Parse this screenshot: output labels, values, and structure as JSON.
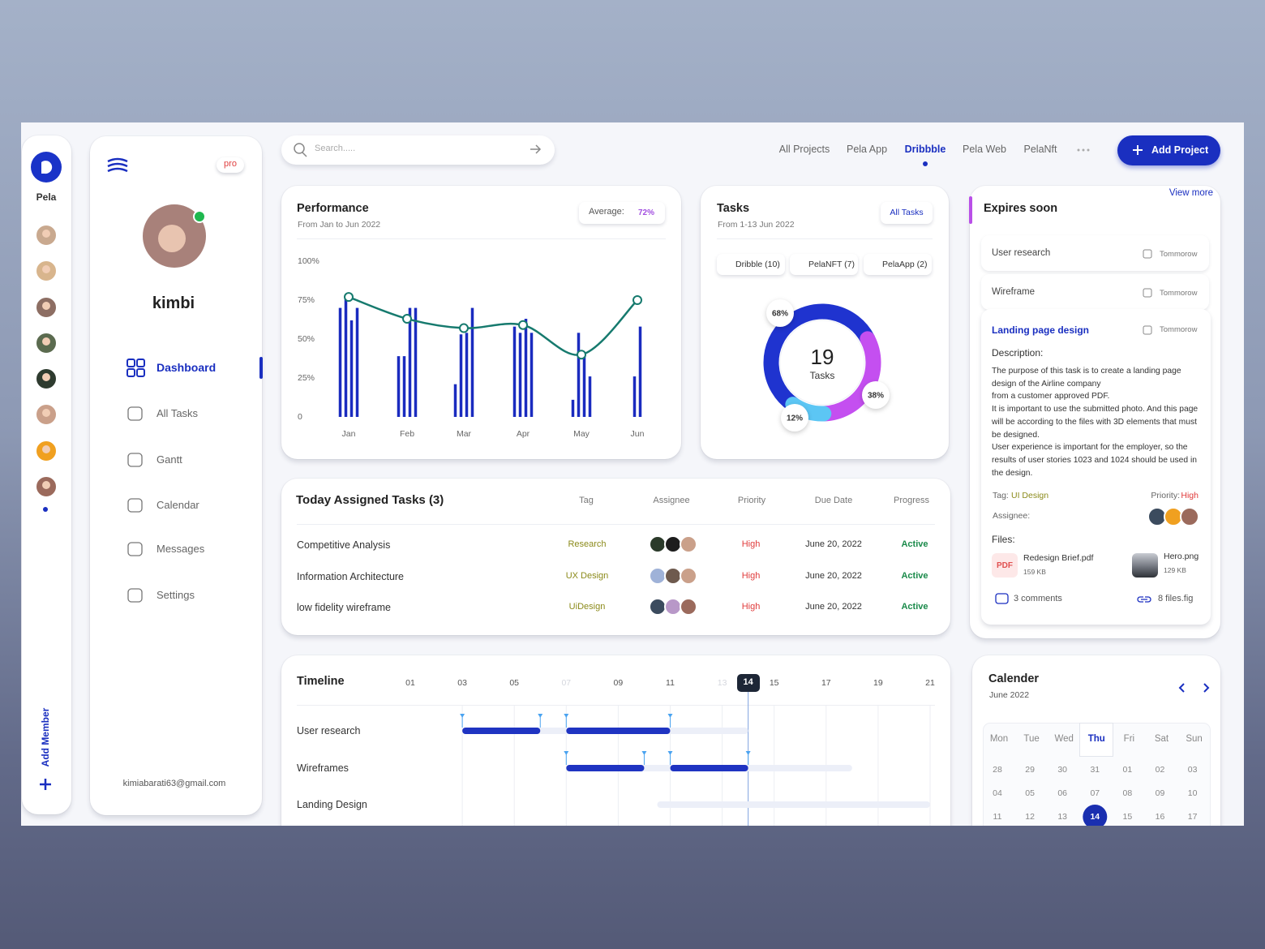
{
  "sidebar": {
    "brand": "Pela",
    "add_member": "Add Member"
  },
  "profile": {
    "badge": "pro",
    "name": "kimbi",
    "email": "kimiabarati63@gmail.com"
  },
  "nav": [
    "Dashboard",
    "All Tasks",
    "Gantt",
    "Calendar",
    "Messages",
    "Settings"
  ],
  "search": {
    "placeholder": "Search....."
  },
  "tabs": [
    "All Projects",
    "Pela App",
    "Dribbble",
    "Pela Web",
    "PelaNft"
  ],
  "add_project": "Add Project",
  "performance": {
    "title": "Performance",
    "subtitle": "From Jan to Jun 2022",
    "average_label": "Average:",
    "average": "72%",
    "months": [
      "Jan",
      "Feb",
      "Mar",
      "Apr",
      "May",
      "Jun"
    ],
    "ylim": [
      0,
      100
    ],
    "yticks": [
      {
        "value": 100,
        "label": "100%"
      },
      {
        "value": 75,
        "label": "75%"
      },
      {
        "value": 50,
        "label": "50%"
      },
      {
        "value": 25,
        "label": "25%"
      },
      0
    ],
    "bars": [
      [
        70,
        77,
        62,
        70
      ],
      [
        39,
        39,
        70,
        70
      ],
      [
        21,
        53,
        54,
        70
      ],
      [
        58,
        54,
        63,
        54
      ],
      [
        11,
        54,
        41,
        26
      ],
      [
        26,
        58
      ]
    ],
    "bar_color": "#1a2bbf",
    "line": [
      77,
      63,
      57,
      59,
      40,
      75
    ],
    "line_color": "#167a6e"
  },
  "tasks": {
    "title": "Tasks",
    "subtitle": "From 1-13 Jun 2022",
    "button": "All Tasks",
    "total": 19,
    "total_label": "Tasks",
    "segments": [
      {
        "name": "Dribble (10)",
        "color": "#1f33cf",
        "value": 68,
        "value_label": "68%"
      },
      {
        "name": "PelaNFT (7)",
        "color": "#5cc6f4",
        "value": 12,
        "value_label": "12%"
      },
      {
        "name": "PelaApp (2)",
        "color": "#c44ff0",
        "value": 38,
        "value_label": "38%"
      }
    ]
  },
  "assigned": {
    "title": "Today Assigned Tasks (3)",
    "columns": [
      "Tag",
      "Assignee",
      "Priority",
      "Due Date",
      "Progress"
    ],
    "rows": [
      [
        "Competitive Analysis",
        "Research",
        "High",
        "June 20, 2022",
        "Active"
      ],
      [
        "Information Architecture",
        "UX Design",
        "High",
        "June 20, 2022",
        "Active"
      ],
      [
        "low fidelity wireframe",
        "UiDesign",
        "High",
        "June 20, 2022",
        "Active"
      ]
    ]
  },
  "expires": {
    "title": "Expires soon",
    "view_more": "View more",
    "items": [
      {
        "name": "User research",
        "due": "Tommorow"
      },
      {
        "name": "Wireframe",
        "due": "Tommorow"
      }
    ],
    "detail": {
      "title": "Landing page  design",
      "due": "Tommorow",
      "description_label": "Description:",
      "description": [
        "The purpose of this task is to create a landing page design of the Airline company",
        "from a customer approved PDF.",
        "It is important to use the submitted photo. And this page will be according to the files with 3D elements that must be designed.",
        "User experience is important for the employer, so the results of user stories 1023 and 1024 should be used in the design."
      ],
      "tag_label": "Tag:",
      "tag": "UI Design",
      "priority_label": "Priority:",
      "priority": "High",
      "assignee_label": "Assignee:",
      "files_label": "Files:",
      "files": [
        {
          "icon": "PDF",
          "name": "Redesign Brief.pdf",
          "size": "159 KB"
        },
        {
          "name": "Hero.png",
          "size": "129 KB"
        }
      ],
      "comments": "3 comments",
      "figma": "8 files.fig"
    }
  },
  "timeline": {
    "title": "Timeline",
    "ticks": [
      {
        "value": 1,
        "label": "01"
      },
      {
        "value": 3,
        "label": "03"
      },
      {
        "value": 5,
        "label": "05"
      },
      {
        "value": 7,
        "label": "07",
        "muted": true
      },
      {
        "value": 9,
        "label": "09"
      },
      11,
      {
        "value": 13,
        "label": "13",
        "muted": true
      },
      {
        "value": 14,
        "label": "14",
        "current": true
      },
      15,
      17,
      19,
      21
    ],
    "rows": [
      {
        "name": "User research",
        "track": [
          3,
          14
        ],
        "segments": [
          [
            3,
            6
          ],
          [
            7,
            11
          ]
        ]
      },
      {
        "name": "Wireframes",
        "track": [
          7,
          18
        ],
        "segments": [
          [
            7,
            10
          ],
          [
            11,
            14
          ]
        ]
      },
      {
        "name": "Landing Design",
        "track": [
          10.5,
          21
        ],
        "segments": []
      }
    ]
  },
  "calendar": {
    "title": "Calender",
    "subtitle": "June 2022",
    "weekdays": [
      "Mon",
      "Tue",
      "Wed",
      {
        "label": "Thu",
        "selected": true
      },
      "Fri",
      "Sat",
      "Sun"
    ],
    "days": [
      [
        "28",
        "29",
        "30",
        "31",
        "01",
        "02",
        "03"
      ],
      [
        "04",
        "05",
        "06",
        "07",
        "08",
        "09",
        "10"
      ],
      [
        "11",
        "12",
        "13",
        {
          "label": "14",
          "selected": true
        },
        "15",
        "16",
        "17"
      ]
    ]
  }
}
